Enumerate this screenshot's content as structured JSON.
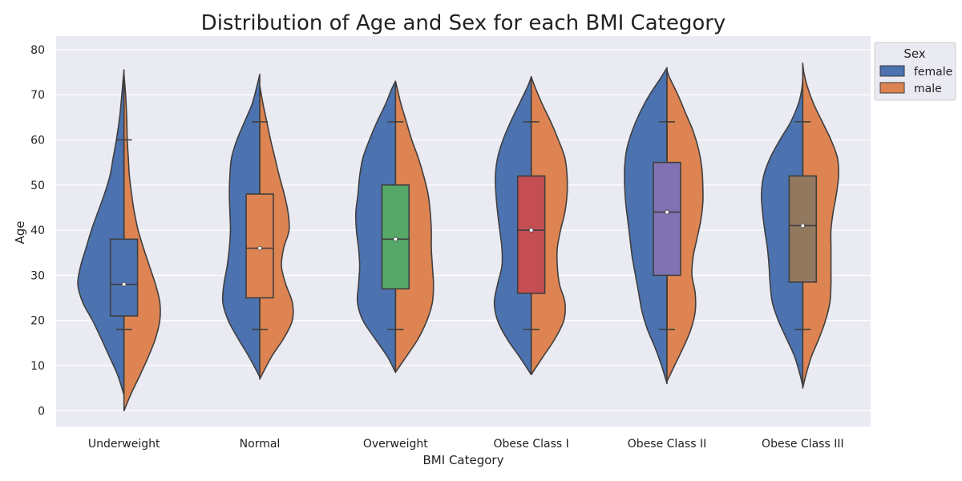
{
  "chart_data": {
    "type": "violin",
    "title": "Distribution of Age and Sex for each BMI Category",
    "xlabel": "BMI Category",
    "ylabel": "Age",
    "ylim": [
      -3.5,
      83
    ],
    "yticks": [
      0,
      10,
      20,
      30,
      40,
      50,
      60,
      70,
      80
    ],
    "grid": true,
    "split": true,
    "categories": [
      "Underweight",
      "Normal",
      "Overweight",
      "Obese Class I",
      "Obese Class II",
      "Obese Class III"
    ],
    "legend": {
      "title": "Sex",
      "placement": "upper right outside",
      "entries": [
        {
          "label": "female",
          "color": "#4c72b0"
        },
        {
          "label": "male",
          "color": "#dd8452"
        }
      ]
    },
    "box_colors": [
      "#4c72b0",
      "#dd8452",
      "#55a868",
      "#c44e52",
      "#8172b3",
      "#937860"
    ],
    "stats": [
      {
        "q1": 21,
        "median": 28,
        "q3": 38,
        "whisker_low": 18,
        "whisker_high": 60
      },
      {
        "q1": 25,
        "median": 36,
        "q3": 48,
        "whisker_low": 18,
        "whisker_high": 64
      },
      {
        "q1": 27,
        "median": 38,
        "q3": 50,
        "whisker_low": 18,
        "whisker_high": 64
      },
      {
        "q1": 26,
        "median": 40,
        "q3": 52,
        "whisker_low": 18,
        "whisker_high": 64
      },
      {
        "q1": 30,
        "median": 44,
        "q3": 55,
        "whisker_low": 18,
        "whisker_high": 64
      },
      {
        "q1": 28.5,
        "median": 41,
        "q3": 52,
        "whisker_low": 18,
        "whisker_high": 64
      }
    ],
    "violins": [
      {
        "female": {
          "ymin": 3.5,
          "ymax": 75.5,
          "profile": [
            [
              3.5,
              0
            ],
            [
              8,
              0.12
            ],
            [
              12,
              0.27
            ],
            [
              16,
              0.42
            ],
            [
              20,
              0.58
            ],
            [
              24,
              0.76
            ],
            [
              28,
              0.85
            ],
            [
              32,
              0.8
            ],
            [
              36,
              0.7
            ],
            [
              40,
              0.6
            ],
            [
              44,
              0.48
            ],
            [
              48,
              0.36
            ],
            [
              52,
              0.26
            ],
            [
              56,
              0.2
            ],
            [
              60,
              0.14
            ],
            [
              65,
              0.08
            ],
            [
              70,
              0.04
            ],
            [
              75.5,
              0
            ]
          ]
        },
        "male": {
          "ymin": 0,
          "ymax": 74.5,
          "profile": [
            [
              0,
              0
            ],
            [
              4,
              0.14
            ],
            [
              8,
              0.3
            ],
            [
              12,
              0.45
            ],
            [
              16,
              0.58
            ],
            [
              20,
              0.66
            ],
            [
              24,
              0.66
            ],
            [
              28,
              0.58
            ],
            [
              32,
              0.47
            ],
            [
              36,
              0.36
            ],
            [
              40,
              0.26
            ],
            [
              44,
              0.19
            ],
            [
              48,
              0.14
            ],
            [
              52,
              0.1
            ],
            [
              56,
              0.08
            ],
            [
              60,
              0.06
            ],
            [
              65,
              0.05
            ],
            [
              70,
              0.03
            ],
            [
              74.5,
              0
            ]
          ]
        }
      },
      {
        "female": {
          "ymin": 7.5,
          "ymax": 74.5,
          "profile": [
            [
              7.5,
              0
            ],
            [
              12,
              0.2
            ],
            [
              16,
              0.4
            ],
            [
              20,
              0.58
            ],
            [
              24,
              0.68
            ],
            [
              28,
              0.66
            ],
            [
              32,
              0.6
            ],
            [
              36,
              0.56
            ],
            [
              40,
              0.54
            ],
            [
              44,
              0.55
            ],
            [
              48,
              0.56
            ],
            [
              52,
              0.55
            ],
            [
              56,
              0.52
            ],
            [
              60,
              0.42
            ],
            [
              64,
              0.28
            ],
            [
              68,
              0.14
            ],
            [
              72,
              0.05
            ],
            [
              74.5,
              0
            ]
          ]
        },
        "male": {
          "ymin": 7,
          "ymax": 72,
          "profile": [
            [
              7,
              0
            ],
            [
              12,
              0.22
            ],
            [
              16,
              0.44
            ],
            [
              20,
              0.6
            ],
            [
              24,
              0.6
            ],
            [
              28,
              0.48
            ],
            [
              32,
              0.4
            ],
            [
              36,
              0.44
            ],
            [
              40,
              0.54
            ],
            [
              44,
              0.52
            ],
            [
              48,
              0.45
            ],
            [
              52,
              0.36
            ],
            [
              56,
              0.28
            ],
            [
              60,
              0.2
            ],
            [
              64,
              0.13
            ],
            [
              68,
              0.06
            ],
            [
              72,
              0
            ]
          ]
        }
      },
      {
        "female": {
          "ymin": 8.5,
          "ymax": 73,
          "profile": [
            [
              8.5,
              0
            ],
            [
              12,
              0.15
            ],
            [
              16,
              0.38
            ],
            [
              20,
              0.6
            ],
            [
              24,
              0.7
            ],
            [
              28,
              0.68
            ],
            [
              32,
              0.66
            ],
            [
              36,
              0.68
            ],
            [
              40,
              0.72
            ],
            [
              44,
              0.73
            ],
            [
              48,
              0.69
            ],
            [
              52,
              0.66
            ],
            [
              56,
              0.6
            ],
            [
              60,
              0.48
            ],
            [
              64,
              0.34
            ],
            [
              68,
              0.18
            ],
            [
              71,
              0.08
            ],
            [
              73,
              0
            ]
          ]
        },
        "male": {
          "ymin": 8.5,
          "ymax": 73,
          "profile": [
            [
              8.5,
              0
            ],
            [
              12,
              0.2
            ],
            [
              16,
              0.42
            ],
            [
              20,
              0.58
            ],
            [
              24,
              0.68
            ],
            [
              28,
              0.7
            ],
            [
              32,
              0.68
            ],
            [
              36,
              0.66
            ],
            [
              40,
              0.66
            ],
            [
              44,
              0.64
            ],
            [
              48,
              0.6
            ],
            [
              52,
              0.52
            ],
            [
              56,
              0.42
            ],
            [
              60,
              0.3
            ],
            [
              64,
              0.2
            ],
            [
              68,
              0.1
            ],
            [
              71,
              0.04
            ],
            [
              73,
              0
            ]
          ]
        }
      },
      {
        "female": {
          "ymin": 8,
          "ymax": 74,
          "profile": [
            [
              8,
              0
            ],
            [
              12,
              0.22
            ],
            [
              16,
              0.45
            ],
            [
              20,
              0.62
            ],
            [
              24,
              0.68
            ],
            [
              28,
              0.62
            ],
            [
              32,
              0.54
            ],
            [
              36,
              0.54
            ],
            [
              40,
              0.58
            ],
            [
              44,
              0.62
            ],
            [
              48,
              0.65
            ],
            [
              52,
              0.66
            ],
            [
              56,
              0.62
            ],
            [
              60,
              0.52
            ],
            [
              64,
              0.38
            ],
            [
              68,
              0.22
            ],
            [
              72,
              0.06
            ],
            [
              74,
              0
            ]
          ]
        },
        "male": {
          "ymin": 8,
          "ymax": 74,
          "profile": [
            [
              8,
              0
            ],
            [
              12,
              0.22
            ],
            [
              16,
              0.44
            ],
            [
              20,
              0.6
            ],
            [
              24,
              0.62
            ],
            [
              28,
              0.52
            ],
            [
              32,
              0.48
            ],
            [
              36,
              0.48
            ],
            [
              40,
              0.54
            ],
            [
              44,
              0.62
            ],
            [
              48,
              0.66
            ],
            [
              52,
              0.66
            ],
            [
              56,
              0.62
            ],
            [
              60,
              0.5
            ],
            [
              64,
              0.36
            ],
            [
              68,
              0.2
            ],
            [
              72,
              0.06
            ],
            [
              74,
              0
            ]
          ]
        }
      },
      {
        "female": {
          "ymin": 6,
          "ymax": 76,
          "profile": [
            [
              6,
              0
            ],
            [
              10,
              0.1
            ],
            [
              14,
              0.22
            ],
            [
              18,
              0.36
            ],
            [
              22,
              0.46
            ],
            [
              26,
              0.52
            ],
            [
              30,
              0.58
            ],
            [
              34,
              0.64
            ],
            [
              38,
              0.68
            ],
            [
              42,
              0.72
            ],
            [
              46,
              0.76
            ],
            [
              50,
              0.78
            ],
            [
              54,
              0.78
            ],
            [
              58,
              0.74
            ],
            [
              62,
              0.64
            ],
            [
              66,
              0.5
            ],
            [
              70,
              0.32
            ],
            [
              74,
              0.1
            ],
            [
              76,
              0
            ]
          ]
        },
        "male": {
          "ymin": 6.5,
          "ymax": 75.5,
          "profile": [
            [
              6.5,
              0
            ],
            [
              10,
              0.14
            ],
            [
              14,
              0.3
            ],
            [
              18,
              0.44
            ],
            [
              22,
              0.52
            ],
            [
              26,
              0.52
            ],
            [
              30,
              0.46
            ],
            [
              34,
              0.48
            ],
            [
              38,
              0.55
            ],
            [
              42,
              0.62
            ],
            [
              46,
              0.66
            ],
            [
              50,
              0.66
            ],
            [
              54,
              0.64
            ],
            [
              58,
              0.58
            ],
            [
              62,
              0.48
            ],
            [
              66,
              0.34
            ],
            [
              70,
              0.2
            ],
            [
              74,
              0.04
            ],
            [
              75.5,
              0
            ]
          ]
        }
      },
      {
        "female": {
          "ymin": 5.5,
          "ymax": 73.5,
          "profile": [
            [
              5.5,
              0
            ],
            [
              8,
              0.05
            ],
            [
              12,
              0.15
            ],
            [
              16,
              0.3
            ],
            [
              20,
              0.45
            ],
            [
              24,
              0.56
            ],
            [
              28,
              0.6
            ],
            [
              32,
              0.62
            ],
            [
              36,
              0.65
            ],
            [
              40,
              0.7
            ],
            [
              44,
              0.74
            ],
            [
              48,
              0.76
            ],
            [
              52,
              0.72
            ],
            [
              56,
              0.6
            ],
            [
              60,
              0.42
            ],
            [
              64,
              0.22
            ],
            [
              68,
              0.08
            ],
            [
              71,
              0.02
            ],
            [
              73.5,
              0
            ]
          ]
        },
        "male": {
          "ymin": 5,
          "ymax": 77,
          "profile": [
            [
              5,
              0
            ],
            [
              8,
              0.06
            ],
            [
              12,
              0.16
            ],
            [
              16,
              0.3
            ],
            [
              20,
              0.42
            ],
            [
              24,
              0.5
            ],
            [
              28,
              0.52
            ],
            [
              32,
              0.52
            ],
            [
              36,
              0.52
            ],
            [
              40,
              0.52
            ],
            [
              44,
              0.56
            ],
            [
              48,
              0.62
            ],
            [
              52,
              0.66
            ],
            [
              56,
              0.64
            ],
            [
              60,
              0.52
            ],
            [
              64,
              0.36
            ],
            [
              68,
              0.2
            ],
            [
              72,
              0.08
            ],
            [
              75,
              0.02
            ],
            [
              77,
              0
            ]
          ]
        }
      }
    ]
  }
}
